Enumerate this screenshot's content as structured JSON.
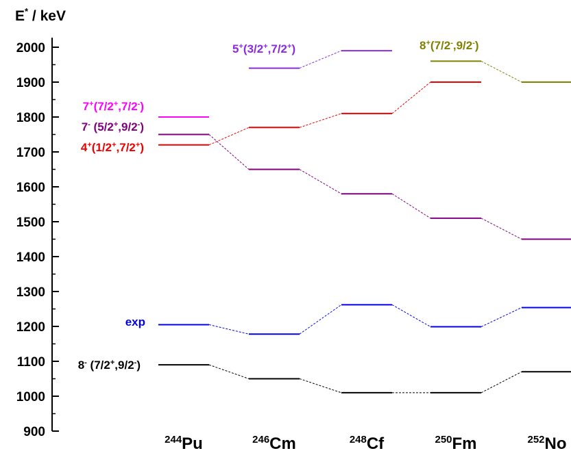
{
  "chart_data": {
    "type": "line",
    "ylabel": {
      "base": "E",
      "sup": "*",
      "rest": " / keV"
    },
    "ylim": [
      900,
      2000
    ],
    "y_ticks": [
      "900",
      "1000",
      "1100",
      "1200",
      "1300",
      "1400",
      "1500",
      "1600",
      "1700",
      "1800",
      "1900",
      "2000"
    ],
    "categories": [
      {
        "mass": "244",
        "symbol": "Pu"
      },
      {
        "mass": "246",
        "symbol": "Cm"
      },
      {
        "mass": "248",
        "symbol": "Cf"
      },
      {
        "mass": "250",
        "symbol": "Fm"
      },
      {
        "mass": "252",
        "symbol": "No"
      }
    ],
    "series": [
      {
        "id": "s8minus",
        "color": "#000000",
        "values": [
          1090,
          1050,
          1010,
          1010,
          1070
        ],
        "label": [
          {
            "t": "8",
            "s": null
          },
          {
            "t": "-",
            "s": "sup"
          },
          {
            "t": " (7/2",
            "s": null
          },
          {
            "t": "+",
            "s": "sup"
          },
          {
            "t": ",9/2",
            "s": null
          },
          {
            "t": "-",
            "s": "sup"
          },
          {
            "t": ")",
            "s": null
          }
        ]
      },
      {
        "id": "exp",
        "color": "#0000ee",
        "values": [
          1205,
          1178,
          1262,
          1199,
          1254
        ],
        "label": [
          {
            "t": "exp",
            "s": null
          }
        ]
      },
      {
        "id": "s4plus",
        "color": "#ee0000",
        "values": [
          1720,
          1770,
          1810,
          1900,
          null
        ],
        "label": [
          {
            "t": "4",
            "s": null
          },
          {
            "t": "+",
            "s": "sup"
          },
          {
            "t": "(1/2",
            "s": null
          },
          {
            "t": "+",
            "s": "sup"
          },
          {
            "t": ",7/2",
            "s": null
          },
          {
            "t": "+",
            "s": "sup"
          },
          {
            "t": ")",
            "s": null
          }
        ]
      },
      {
        "id": "s7minus",
        "color": "#800080",
        "values": [
          1750,
          1650,
          1580,
          1510,
          1450
        ],
        "label": [
          {
            "t": "7",
            "s": null
          },
          {
            "t": "-",
            "s": "sup"
          },
          {
            "t": " (5/2",
            "s": null
          },
          {
            "t": "+",
            "s": "sup"
          },
          {
            "t": ",9/2",
            "s": null
          },
          {
            "t": "-",
            "s": "sup"
          },
          {
            "t": ")",
            "s": null
          }
        ]
      },
      {
        "id": "s7plus",
        "color": "#ff00ff",
        "values": [
          1800,
          null,
          null,
          null,
          null
        ],
        "label": [
          {
            "t": "7",
            "s": null
          },
          {
            "t": "+",
            "s": "sup"
          },
          {
            "t": "(7/2",
            "s": null
          },
          {
            "t": "+",
            "s": "sup"
          },
          {
            "t": ",7/2",
            "s": null
          },
          {
            "t": "-",
            "s": "sup"
          },
          {
            "t": ")",
            "s": null
          }
        ]
      },
      {
        "id": "s5plus",
        "color": "#8a2be2",
        "values": [
          null,
          1940,
          1990,
          null,
          null
        ],
        "label": [
          {
            "t": "5",
            "s": null
          },
          {
            "t": "+",
            "s": "sup"
          },
          {
            "t": "(3/2",
            "s": null
          },
          {
            "t": "+",
            "s": "sup"
          },
          {
            "t": ",7/2",
            "s": null
          },
          {
            "t": "+",
            "s": "sup"
          },
          {
            "t": ")",
            "s": null
          }
        ]
      },
      {
        "id": "s8plus",
        "color": "#808000",
        "values": [
          null,
          null,
          null,
          1960,
          1900
        ],
        "label": [
          {
            "t": "8",
            "s": null
          },
          {
            "t": "+",
            "s": "sup"
          },
          {
            "t": "(7/2",
            "s": null
          },
          {
            "t": "-",
            "s": "sup"
          },
          {
            "t": ",9/2",
            "s": null
          },
          {
            "t": "-",
            "s": "sup"
          },
          {
            "t": ")",
            "s": null
          }
        ]
      }
    ]
  }
}
